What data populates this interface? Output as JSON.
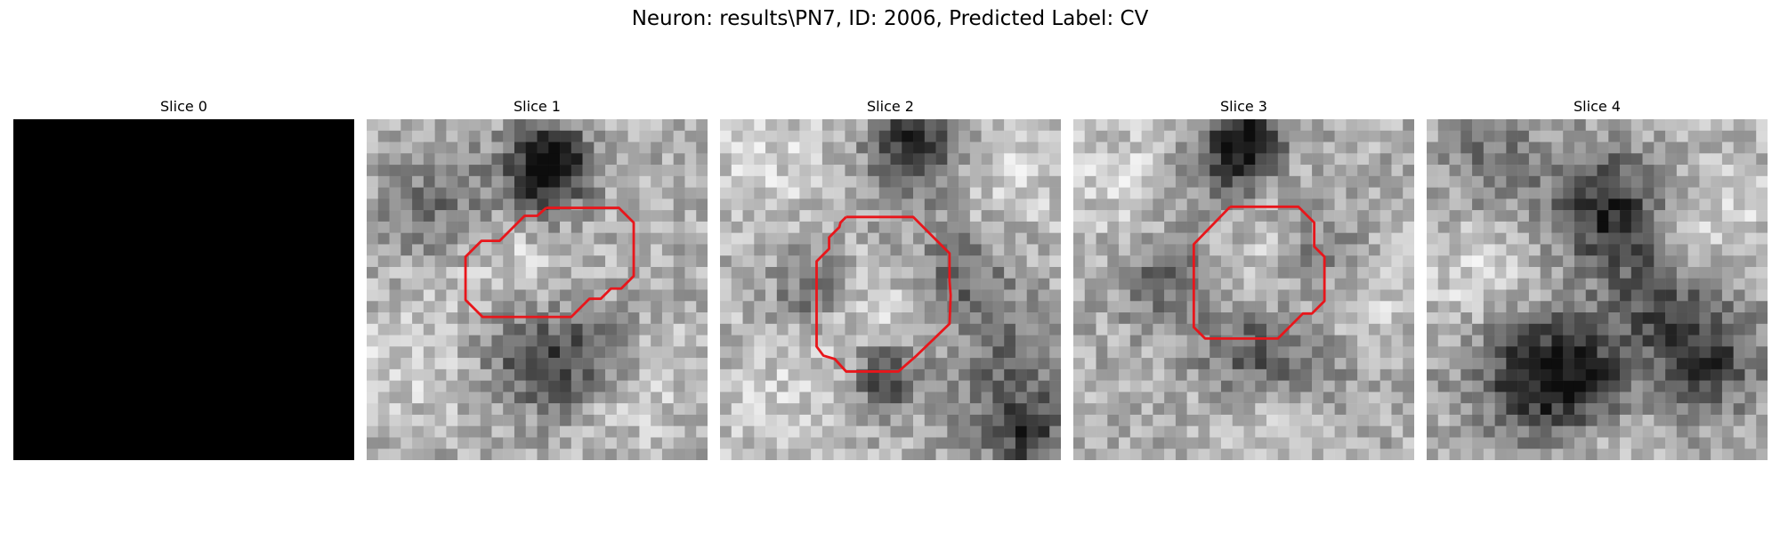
{
  "figure": {
    "title": "Neuron: results\\PN7, ID: 2006, Predicted Label: CV"
  },
  "panels": [
    {
      "title": "Slice 0",
      "blank": true
    },
    {
      "title": "Slice 1"
    },
    {
      "title": "Slice 2"
    },
    {
      "title": "Slice 3"
    },
    {
      "title": "Slice 4"
    }
  ],
  "colors": {
    "contour": "#e8161b",
    "blank_slice": "#000000"
  },
  "icons": {
    "panel_image": "grayscale-microscopy-tile"
  }
}
